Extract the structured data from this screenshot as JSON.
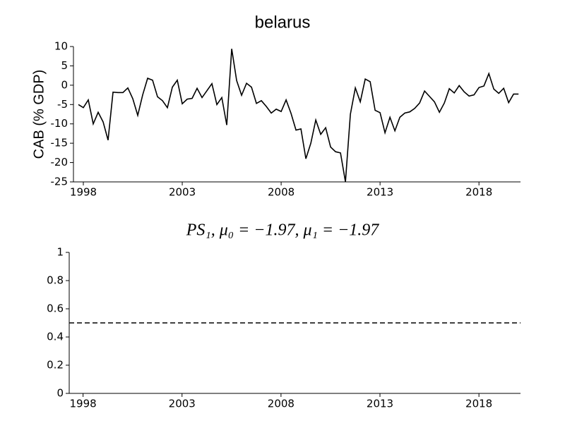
{
  "chart_data": [
    {
      "type": "line",
      "title": "belarus",
      "y_label": "CAB (% GDP)",
      "x": [
        1997.75,
        1998,
        1998.25,
        1998.5,
        1998.75,
        1999,
        1999.25,
        1999.5,
        1999.75,
        2000,
        2000.25,
        2000.5,
        2000.75,
        2001,
        2001.25,
        2001.5,
        2001.75,
        2002,
        2002.25,
        2002.5,
        2002.75,
        2003,
        2003.25,
        2003.5,
        2003.75,
        2004,
        2004.25,
        2004.5,
        2004.75,
        2005,
        2005.25,
        2005.5,
        2005.75,
        2006,
        2006.25,
        2006.5,
        2006.75,
        2007,
        2007.25,
        2007.5,
        2007.75,
        2008,
        2008.25,
        2008.5,
        2008.75,
        2009,
        2009.25,
        2009.5,
        2009.75,
        2010,
        2010.25,
        2010.5,
        2010.75,
        2011,
        2011.25,
        2011.5,
        2011.75,
        2012,
        2012.25,
        2012.5,
        2012.75,
        2013,
        2013.25,
        2013.5,
        2013.75,
        2014,
        2014.25,
        2014.5,
        2014.75,
        2015,
        2015.25,
        2015.5,
        2015.75,
        2016,
        2016.25,
        2016.5,
        2016.75,
        2017,
        2017.25,
        2017.5,
        2017.75,
        2018,
        2018.25,
        2018.5,
        2018.75,
        2019,
        2019.25,
        2019.5,
        2019.75,
        2020
      ],
      "series": [
        {
          "name": "CAB",
          "color": "#000000",
          "values": [
            -5,
            -5.8,
            -3.8,
            -10,
            -7,
            -9.5,
            -14.2,
            -1.8,
            -1.9,
            -1.9,
            -0.7,
            -3.5,
            -7.8,
            -2.5,
            1.8,
            1.3,
            -3,
            -4,
            -5.8,
            -0.5,
            1.3,
            -4.8,
            -3.6,
            -3.4,
            -0.8,
            -3.2,
            -1.4,
            0.4,
            -5,
            -3.2,
            -10.3,
            9.4,
            1.2,
            -2.6,
            0.5,
            -0.5,
            -4.7,
            -4,
            -5.5,
            -7.2,
            -6.2,
            -6.8,
            -3.8,
            -7.3,
            -11.6,
            -11.3,
            -19,
            -15,
            -9,
            -12.7,
            -11,
            -16,
            -17.2,
            -17.5,
            -25,
            -7.5,
            -0.7,
            -4.3,
            1.6,
            0.9,
            -6.5,
            -7.1,
            -12.3,
            -8.3,
            -11.8,
            -8.3,
            -7.2,
            -6.9,
            -6,
            -4.6,
            -1.5,
            -2.9,
            -4.3,
            -7,
            -4.6,
            -0.9,
            -2,
            -0.1,
            -1.7,
            -2.8,
            -2.5,
            -0.6,
            -0.2,
            3,
            -1,
            -2.1,
            -0.8,
            -4.5,
            -2.3,
            -2.3
          ]
        }
      ],
      "xlim": [
        1997.5,
        2020.1
      ],
      "xticks": [
        1998,
        2003,
        2008,
        2013,
        2018
      ],
      "ylim": [
        -25,
        10
      ],
      "yticks": [
        10,
        5,
        0,
        -5,
        -10,
        -15,
        -20,
        -25
      ]
    },
    {
      "type": "line",
      "title": "PS₁, μ₀ = −1.97, μ₁ = −1.97",
      "x": [
        1997.3,
        2020.1
      ],
      "series": [
        {
          "name": "P",
          "color": "#000000",
          "dashed": true,
          "values": [
            0.5,
            0.5
          ]
        }
      ],
      "xlim": [
        1997.3,
        2020.1
      ],
      "xticks": [
        1998,
        2003,
        2008,
        2013,
        2018
      ],
      "ylim": [
        0,
        1
      ],
      "yticks": [
        0,
        0.2,
        0.4,
        0.6,
        0.8,
        1
      ]
    }
  ]
}
